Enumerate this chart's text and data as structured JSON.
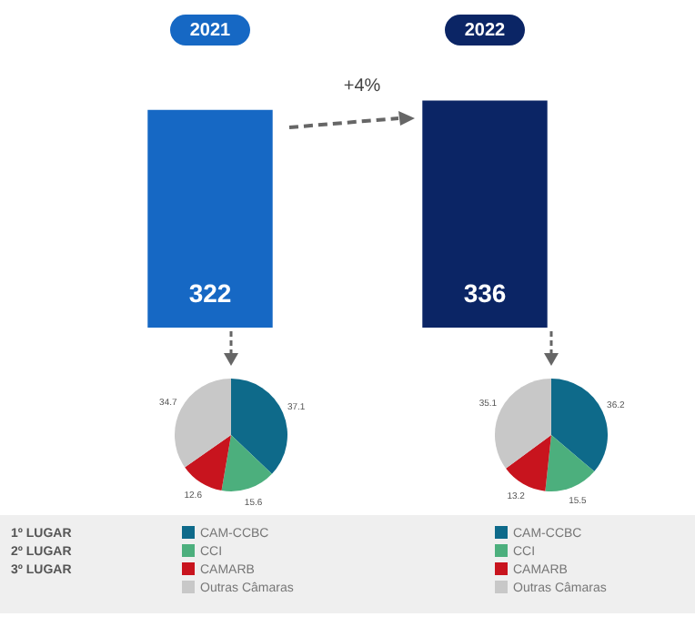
{
  "chart_data": [
    {
      "type": "bar",
      "categories": [
        "2021",
        "2022"
      ],
      "values": [
        322,
        336
      ],
      "colors": [
        "#1668c4",
        "#0b2565"
      ],
      "data_labels": true,
      "annotations": [
        "+4%"
      ]
    },
    {
      "type": "pie",
      "categories": [
        "CAM-CCBC",
        "CCI",
        "CAMARB",
        "Outras Câmaras"
      ],
      "values": [
        37.1,
        15.6,
        12.6,
        34.7
      ],
      "colors": [
        "#0e6a8a",
        "#4caf7d",
        "#c8141e",
        "#c8c8c8"
      ],
      "data_labels": true,
      "legend": "bottom",
      "annotations": [
        "1º LUGAR",
        "2º LUGAR",
        "3º LUGAR"
      ]
    },
    {
      "type": "pie",
      "categories": [
        "CAM-CCBC",
        "CCI",
        "CAMARB",
        "Outras Câmaras"
      ],
      "values": [
        36.2,
        15.5,
        13.2,
        35.1
      ],
      "colors": [
        "#0e6a8a",
        "#4caf7d",
        "#c8141e",
        "#c8c8c8"
      ],
      "data_labels": true,
      "legend": "bottom"
    }
  ]
}
